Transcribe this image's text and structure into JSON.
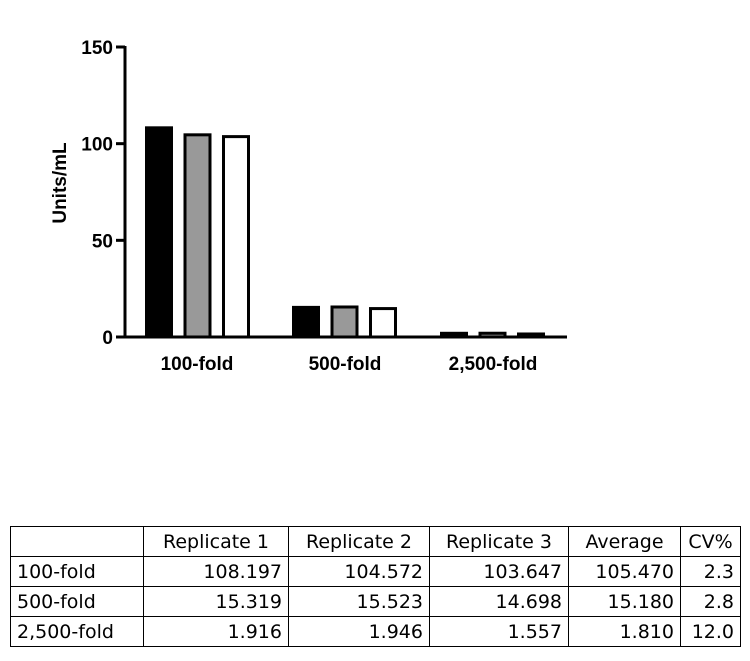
{
  "chart_data": {
    "type": "bar",
    "categories": [
      "100-fold",
      "500-fold",
      "2,500-fold"
    ],
    "series": [
      {
        "values": [
          108.197,
          15.319,
          1.916
        ],
        "color": "#000000"
      },
      {
        "values": [
          104.572,
          15.523,
          1.946
        ],
        "color": "#999999"
      },
      {
        "values": [
          103.647,
          14.698,
          1.557
        ],
        "color": "#ffffff"
      }
    ],
    "ylabel": "Units/mL",
    "ylim": [
      0,
      150
    ],
    "yticks": [
      0,
      50,
      100,
      150
    ],
    "grid": false,
    "legend": "none"
  },
  "table": {
    "headers": [
      "",
      "Replicate 1",
      "Replicate 2",
      "Replicate 3",
      "Average",
      "CV%"
    ],
    "rows": [
      [
        "100-fold",
        "108.197",
        "104.572",
        "103.647",
        "105.470",
        "2.3"
      ],
      [
        "500-fold",
        "15.319",
        "15.523",
        "14.698",
        "15.180",
        "2.8"
      ],
      [
        "2,500-fold",
        "1.916",
        "1.946",
        "1.557",
        "1.810",
        "12.0"
      ]
    ]
  }
}
